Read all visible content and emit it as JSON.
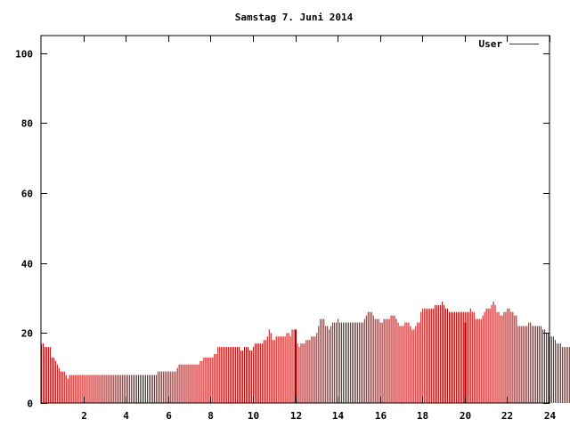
{
  "chart_data": {
    "type": "bar",
    "title": "Samstag 7. Juni 2014",
    "xlabel": "",
    "ylabel": "",
    "xlim": [
      0,
      24
    ],
    "ylim": [
      0,
      105
    ],
    "x_ticks": [
      2,
      4,
      6,
      8,
      10,
      12,
      14,
      16,
      18,
      20,
      22,
      24
    ],
    "y_ticks": [
      0,
      20,
      40,
      60,
      80,
      100
    ],
    "grid": false,
    "legend_position": "top-right",
    "series": [
      {
        "name": "User",
        "color": "#cc0000",
        "points_per_hour": 12,
        "values": [
          17,
          17,
          16,
          16,
          16,
          16,
          13,
          13,
          12,
          11,
          10,
          9,
          9,
          9,
          8,
          7,
          8,
          8,
          8,
          8,
          8,
          8,
          8,
          8,
          8,
          8,
          8,
          8,
          8,
          8,
          8,
          8,
          8,
          8,
          8,
          8,
          8,
          8,
          8,
          8,
          8,
          8,
          8,
          8,
          8,
          8,
          8,
          8,
          8,
          8,
          8,
          8,
          8,
          8,
          8,
          8,
          8,
          8,
          8,
          8,
          8,
          8,
          8,
          8,
          8,
          8,
          9,
          9,
          9,
          9,
          9,
          9,
          9,
          9,
          9,
          9,
          9,
          10,
          11,
          11,
          11,
          11,
          11,
          11,
          11,
          11,
          11,
          11,
          11,
          11,
          12,
          12,
          13,
          13,
          13,
          13,
          13,
          13,
          14,
          14,
          16,
          16,
          16,
          16,
          16,
          16,
          16,
          16,
          16,
          16,
          16,
          16,
          16,
          15,
          15,
          16,
          16,
          16,
          15,
          15,
          16,
          17,
          17,
          17,
          17,
          17,
          18,
          18,
          19,
          21,
          20,
          18,
          18,
          19,
          19,
          19,
          19,
          19,
          19,
          20,
          20,
          19,
          21,
          21,
          17,
          17,
          16,
          17,
          17,
          17,
          18,
          18,
          18,
          19,
          19,
          19,
          20,
          22,
          24,
          24,
          24,
          22,
          22,
          21,
          22,
          23,
          23,
          23,
          24,
          23,
          23,
          23,
          23,
          23,
          23,
          23,
          23,
          23,
          23,
          23,
          23,
          23,
          23,
          24,
          25,
          26,
          26,
          26,
          25,
          24,
          24,
          24,
          23,
          23,
          24,
          24,
          24,
          24,
          25,
          25,
          25,
          24,
          23,
          22,
          22,
          22,
          23,
          23,
          23,
          22,
          21,
          21,
          22,
          23,
          23,
          26,
          27,
          27,
          27,
          27,
          27,
          27,
          27,
          28,
          28,
          28,
          28,
          29,
          28,
          27,
          27,
          26,
          26,
          26,
          26,
          26,
          26,
          26,
          26,
          26,
          26,
          26,
          26,
          27,
          26,
          26,
          24,
          24,
          24,
          24,
          25,
          26,
          27,
          27,
          27,
          28,
          29,
          28,
          26,
          26,
          25,
          25,
          26,
          26,
          27,
          27,
          26,
          26,
          25,
          25,
          22,
          22,
          22,
          22,
          22,
          22,
          23,
          23,
          22,
          22,
          22,
          22,
          22,
          22,
          21,
          21,
          20,
          20,
          19,
          19,
          19,
          18,
          17,
          17,
          17,
          16,
          16,
          16,
          16,
          16,
          16,
          15,
          15,
          15,
          16
        ]
      }
    ],
    "markers": [
      {
        "x": 12.0,
        "value": 21
      },
      {
        "x": 20.0,
        "value": 23
      }
    ],
    "colors": {
      "bar": "#cc0000",
      "marker": "#aa0000",
      "axis": "#000000",
      "background": "#ffffff"
    }
  }
}
